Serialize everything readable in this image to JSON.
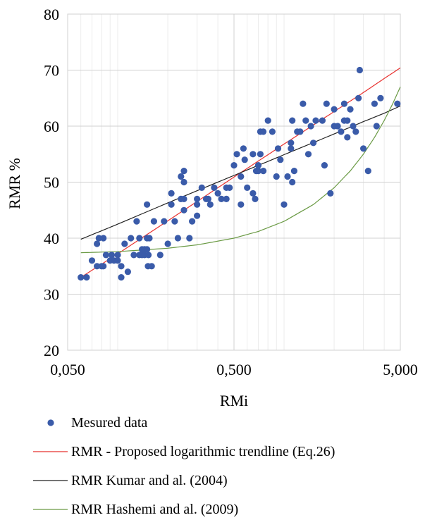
{
  "chart_data": {
    "type": "scatter",
    "title": "",
    "xlabel": "RMi",
    "ylabel": "RMR %",
    "x_scale": "log",
    "xlim": [
      0.05,
      5
    ],
    "ylim": [
      20,
      80
    ],
    "grid": true,
    "legend_position": "bottom",
    "x_tick_values": [
      0.05,
      0.5,
      5
    ],
    "x_tick_labels": [
      "0,050",
      "0,500",
      "5,000"
    ],
    "y_ticks": [
      20,
      30,
      40,
      50,
      60,
      70,
      80
    ],
    "y_tick_labels": [
      "20",
      "30",
      "40",
      "50",
      "60",
      "70",
      "80"
    ],
    "series": [
      {
        "name": "Mesured data",
        "kind": "points",
        "color": "#3a5ba9",
        "x": [
          0.06,
          0.065,
          0.07,
          0.075,
          0.075,
          0.077,
          0.08,
          0.082,
          0.082,
          0.085,
          0.09,
          0.092,
          0.095,
          0.1,
          0.1,
          0.105,
          0.105,
          0.11,
          0.115,
          0.12,
          0.125,
          0.13,
          0.135,
          0.135,
          0.14,
          0.14,
          0.145,
          0.145,
          0.15,
          0.15,
          0.15,
          0.152,
          0.153,
          0.155,
          0.16,
          0.165,
          0.18,
          0.19,
          0.2,
          0.21,
          0.21,
          0.22,
          0.23,
          0.24,
          0.24,
          0.25,
          0.25,
          0.25,
          0.25,
          0.27,
          0.28,
          0.3,
          0.3,
          0.3,
          0.32,
          0.34,
          0.35,
          0.36,
          0.38,
          0.4,
          0.42,
          0.45,
          0.45,
          0.47,
          0.5,
          0.52,
          0.55,
          0.55,
          0.57,
          0.58,
          0.6,
          0.65,
          0.65,
          0.67,
          0.68,
          0.7,
          0.7,
          0.72,
          0.72,
          0.75,
          0.75,
          0.8,
          0.85,
          0.9,
          0.92,
          0.95,
          1.0,
          1.05,
          1.1,
          1.1,
          1.12,
          1.12,
          1.15,
          1.2,
          1.25,
          1.3,
          1.35,
          1.4,
          1.45,
          1.5,
          1.55,
          1.7,
          1.75,
          1.8,
          1.9,
          2.0,
          2.0,
          2.1,
          2.2,
          2.3,
          2.3,
          2.4,
          2.4,
          2.5,
          2.6,
          2.7,
          2.8,
          2.85,
          3.0,
          3.2,
          3.5,
          3.6,
          3.8,
          4.8
        ],
        "y": [
          33,
          33,
          36,
          39,
          35,
          40,
          35,
          40,
          35,
          37,
          36,
          37,
          36,
          37,
          36,
          35,
          33,
          39,
          34,
          40,
          37,
          43,
          37,
          40,
          37,
          38,
          38,
          37,
          40,
          46,
          38,
          35,
          37,
          40,
          35,
          43,
          37,
          43,
          39,
          46,
          48,
          43,
          40,
          51,
          47,
          45,
          52,
          50,
          47,
          40,
          43,
          44,
          47,
          46,
          49,
          47,
          47,
          46,
          49,
          48,
          47,
          49,
          47,
          49,
          53,
          55,
          46,
          51,
          56,
          54,
          49,
          55,
          48,
          47,
          52,
          52,
          53,
          55,
          59,
          52,
          59,
          61,
          59,
          51,
          56,
          54,
          46,
          51,
          56,
          57,
          50,
          61,
          52,
          59,
          59,
          64,
          61,
          55,
          60,
          57,
          61,
          61,
          53,
          64,
          48,
          63,
          60,
          60,
          59,
          64,
          61,
          61,
          58,
          63,
          60,
          59,
          65,
          70,
          56,
          52,
          64,
          60,
          65,
          64
        ]
      },
      {
        "name": "RMR - Proposed logarithmic trendline (Eq.26)",
        "kind": "line",
        "color": "#e8312f",
        "x": [
          0.06,
          0.1,
          0.2,
          0.5,
          1.0,
          2.0,
          3.0,
          4.0,
          5.0
        ],
        "y": [
          33.0,
          37.2,
          43.1,
          50.9,
          56.8,
          62.6,
          66.0,
          68.5,
          70.4
        ]
      },
      {
        "name": "RMR Kumar and al. (2004)",
        "kind": "line",
        "color": "#222222",
        "x": [
          0.06,
          0.1,
          0.2,
          0.5,
          1.0,
          2.0,
          3.0,
          4.0,
          5.0
        ],
        "y": [
          39.8,
          42.5,
          46.3,
          51.2,
          54.9,
          58.6,
          60.8,
          62.3,
          63.6
        ]
      },
      {
        "name": "RMR Hashemi and al. (2009)",
        "kind": "line",
        "color": "#6a9a44",
        "x": [
          0.06,
          0.1,
          0.2,
          0.3,
          0.5,
          0.7,
          1.0,
          1.5,
          2.0,
          2.5,
          3.0,
          3.5,
          4.0,
          4.5,
          5.0
        ],
        "y": [
          37.4,
          37.6,
          38.2,
          38.8,
          40.0,
          41.2,
          43.0,
          46.0,
          49.0,
          52.0,
          55.0,
          58.0,
          61.0,
          64.0,
          67.0
        ]
      }
    ]
  }
}
